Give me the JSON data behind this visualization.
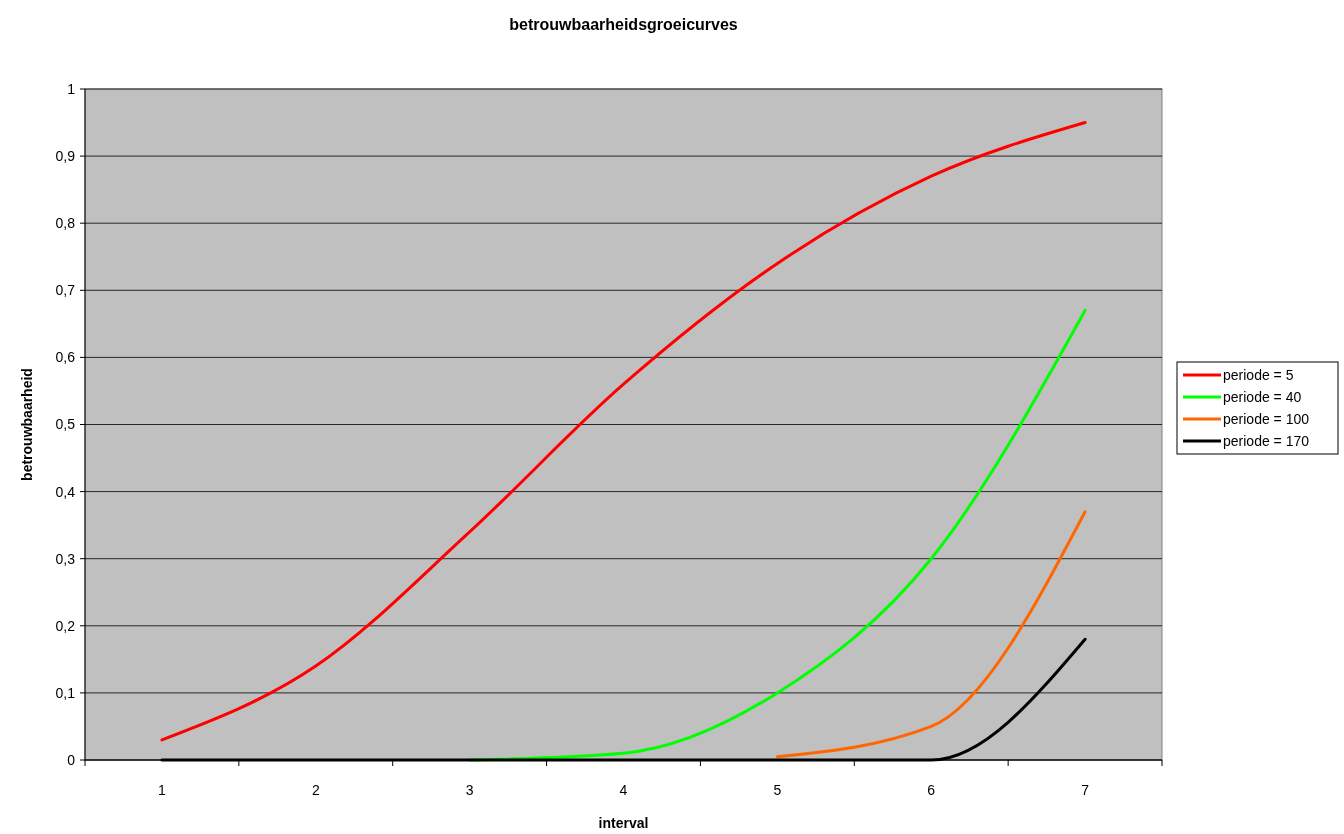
{
  "chart_data": {
    "type": "line",
    "title": "betrouwbaarheidsgroeicurves",
    "xlabel": "interval",
    "ylabel": "betrouwbaarheid",
    "categories": [
      "1",
      "2",
      "3",
      "4",
      "5",
      "6",
      "7"
    ],
    "ylim": [
      0,
      1
    ],
    "yticks": [
      {
        "value": 0,
        "label": "0"
      },
      {
        "value": 0.1,
        "label": "0,1"
      },
      {
        "value": 0.2,
        "label": "0,2"
      },
      {
        "value": 0.3,
        "label": "0,3"
      },
      {
        "value": 0.4,
        "label": "0,4"
      },
      {
        "value": 0.5,
        "label": "0,5"
      },
      {
        "value": 0.6,
        "label": "0,6"
      },
      {
        "value": 0.7,
        "label": "0,7"
      },
      {
        "value": 0.8,
        "label": "0,8"
      },
      {
        "value": 0.9,
        "label": "0,9"
      },
      {
        "value": 1,
        "label": "1"
      }
    ],
    "grid": "y",
    "legend": "right",
    "marker": "none",
    "line_style": "solid",
    "series": [
      {
        "name": "periode = 5",
        "color": "#ff0000",
        "values": [
          0.03,
          0.14,
          0.34,
          0.56,
          0.74,
          0.87,
          0.95
        ]
      },
      {
        "name": "periode = 40",
        "color": "#00ff00",
        "values": [
          null,
          null,
          0,
          0.01,
          0.1,
          0.3,
          0.67
        ]
      },
      {
        "name": "periode = 100",
        "color": "#ff6600",
        "values": [
          null,
          null,
          null,
          null,
          0.005,
          0.05,
          0.37
        ]
      },
      {
        "name": "periode = 170",
        "color": "#000000",
        "values": [
          0,
          0,
          0,
          0,
          0,
          0,
          0.18
        ]
      }
    ]
  }
}
